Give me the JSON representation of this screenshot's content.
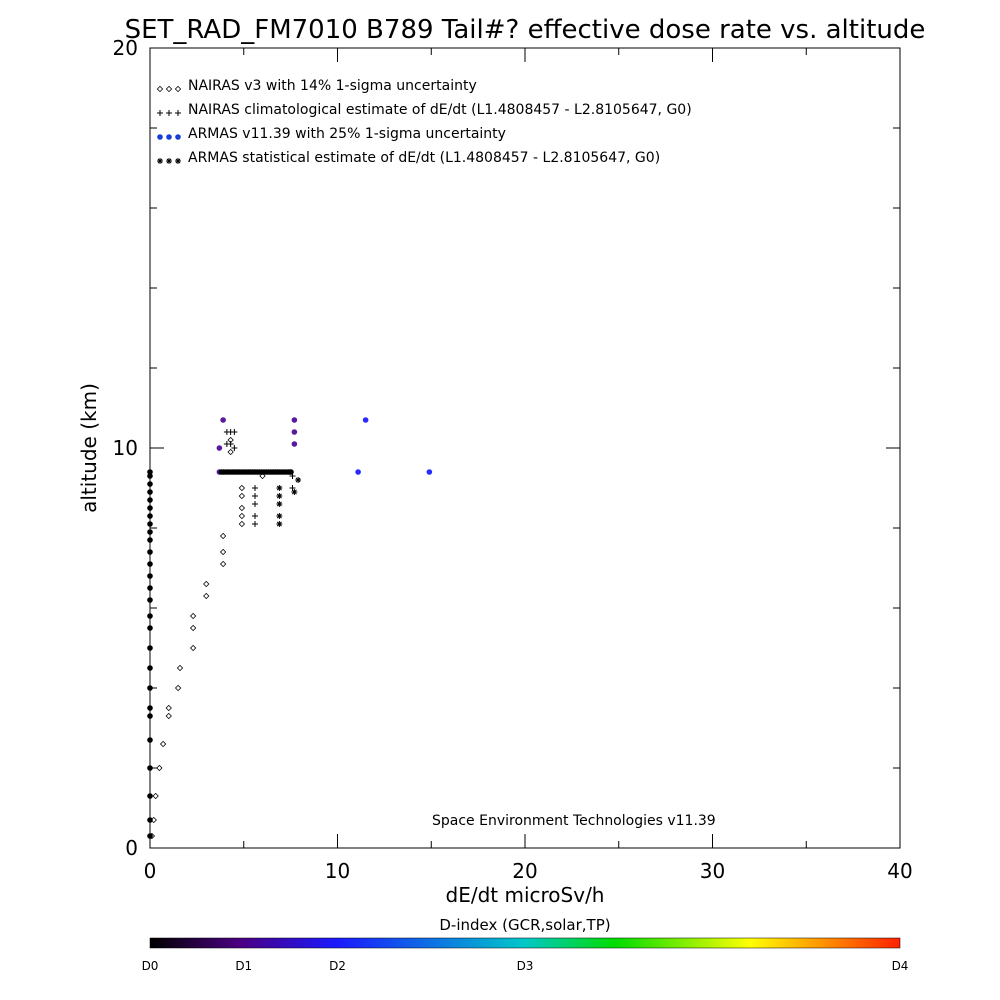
{
  "chart_data": {
    "type": "scatter",
    "title": "SET_RAD_FM7010  B789 Tail#? effective dose rate vs. altitude",
    "xlabel": "dE/dt microSv/h",
    "ylabel": "altitude (km)",
    "xlim": [
      0,
      40
    ],
    "ylim": [
      0,
      20
    ],
    "x_ticks": [
      0,
      10,
      20,
      30,
      40
    ],
    "y_ticks": [
      0,
      10,
      20
    ],
    "grid": false,
    "legend_position": "top-left",
    "annotation": "Space Environment Technologies v11.39",
    "series": [
      {
        "name": "NAIRAS v3 with 14% 1-sigma uncertainty",
        "marker": "diamond",
        "color": "#000000",
        "points": [
          [
            0.1,
            0.3
          ],
          [
            0.2,
            0.7
          ],
          [
            0.3,
            1.3
          ],
          [
            0.5,
            2.0
          ],
          [
            0.7,
            2.6
          ],
          [
            1.0,
            3.3
          ],
          [
            1.0,
            3.5
          ],
          [
            1.5,
            4.0
          ],
          [
            1.6,
            4.5
          ],
          [
            2.3,
            5.0
          ],
          [
            2.3,
            5.5
          ],
          [
            2.3,
            5.8
          ],
          [
            3.0,
            6.3
          ],
          [
            3.0,
            6.6
          ],
          [
            3.9,
            7.1
          ],
          [
            3.9,
            7.4
          ],
          [
            3.9,
            7.8
          ],
          [
            4.9,
            8.1
          ],
          [
            4.9,
            8.3
          ],
          [
            4.9,
            8.5
          ],
          [
            4.9,
            8.8
          ],
          [
            4.9,
            9.0
          ],
          [
            6.0,
            9.3
          ],
          [
            4.3,
            9.9
          ],
          [
            4.3,
            10.2
          ]
        ]
      },
      {
        "name": "NAIRAS climatological estimate of dE/dt (L1.4808457 - L2.8105647, G0)",
        "marker": "plus",
        "color": "#000000",
        "points": [
          [
            5.6,
            8.1
          ],
          [
            5.6,
            8.3
          ],
          [
            5.6,
            8.6
          ],
          [
            5.6,
            8.8
          ],
          [
            5.6,
            9.0
          ],
          [
            7.6,
            9.0
          ],
          [
            7.6,
            9.3
          ],
          [
            4.1,
            10.1
          ],
          [
            4.3,
            10.1
          ],
          [
            4.5,
            10.0
          ],
          [
            4.1,
            10.4
          ],
          [
            4.3,
            10.4
          ],
          [
            4.5,
            10.4
          ]
        ]
      },
      {
        "name": "ARMAS v11.39 with 25% 1-sigma uncertainty",
        "marker": "filled-circle",
        "color": "#1a3dd6",
        "points": [
          [
            0,
            0.3
          ],
          [
            0,
            0.7
          ],
          [
            0,
            1.3
          ],
          [
            0,
            2.0
          ],
          [
            0,
            2.7
          ],
          [
            0,
            3.3
          ],
          [
            0,
            3.5
          ],
          [
            0,
            4.0
          ],
          [
            0,
            4.5
          ],
          [
            0,
            5.0
          ],
          [
            0,
            5.5
          ],
          [
            0,
            5.8
          ],
          [
            0,
            6.2
          ],
          [
            0,
            6.5
          ],
          [
            0,
            6.8
          ],
          [
            0,
            7.1
          ],
          [
            0,
            7.4
          ],
          [
            0,
            7.7
          ],
          [
            0,
            7.9
          ],
          [
            0,
            8.1
          ],
          [
            0,
            8.3
          ],
          [
            0,
            8.5
          ],
          [
            0,
            8.7
          ],
          [
            0,
            8.9
          ],
          [
            0,
            9.1
          ],
          [
            0,
            9.3
          ],
          [
            0,
            9.4
          ],
          [
            3.7,
            9.4
          ],
          [
            7.5,
            9.4
          ],
          [
            11.1,
            9.4
          ],
          [
            14.9,
            9.4
          ],
          [
            3.7,
            10.0
          ],
          [
            7.7,
            10.1
          ],
          [
            7.7,
            10.4
          ],
          [
            3.9,
            10.7
          ],
          [
            7.7,
            10.7
          ],
          [
            11.5,
            10.7
          ]
        ]
      },
      {
        "name": "ARMAS statistical estimate of dE/dt (L1.4808457 - L2.8105647, G0)",
        "marker": "asterisk",
        "color": "#000000",
        "points": [
          [
            6.9,
            8.1
          ],
          [
            6.9,
            8.3
          ],
          [
            6.9,
            8.6
          ],
          [
            6.9,
            8.8
          ],
          [
            6.9,
            9.0
          ],
          [
            7.7,
            8.9
          ],
          [
            7.9,
            9.2
          ]
        ]
      }
    ],
    "colorbar": {
      "title": "D-index (GCR,solar,TP)",
      "labels": [
        "D0",
        "D1",
        "D2",
        "D3",
        "D4"
      ],
      "positions": [
        0,
        0.125,
        0.25,
        0.5,
        1
      ],
      "colors": [
        "#000000",
        "#4b0082",
        "#1a1aff",
        "#00c8c8",
        "#00dc00",
        "#ffff00",
        "#ff2000"
      ]
    }
  }
}
